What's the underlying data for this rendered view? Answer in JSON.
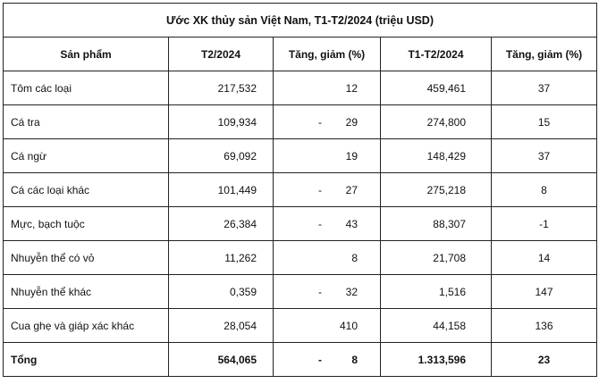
{
  "table": {
    "title": "Ước XK thủy sản Việt Nam, T1-T2/2024 (triệu USD)",
    "headers": [
      "Sản phẩm",
      "T2/2024",
      "Tăng, giảm (%)",
      "T1-T2/2024",
      "Tăng, giảm (%)"
    ],
    "rows": [
      {
        "product": "Tôm các loại",
        "feb": "217,532",
        "feb_sign": "",
        "feb_change": "12",
        "ytd": "459,461",
        "ytd_change": "37"
      },
      {
        "product": "Cá tra",
        "feb": "109,934",
        "feb_sign": "-",
        "feb_change": "29",
        "ytd": "274,800",
        "ytd_change": "15"
      },
      {
        "product": "Cá ngừ",
        "feb": "69,092",
        "feb_sign": "",
        "feb_change": "19",
        "ytd": "148,429",
        "ytd_change": "37"
      },
      {
        "product": "Cá các loại khác",
        "feb": "101,449",
        "feb_sign": "-",
        "feb_change": "27",
        "ytd": "275,218",
        "ytd_change": "8"
      },
      {
        "product": "Mực, bạch tuộc",
        "feb": "26,384",
        "feb_sign": "-",
        "feb_change": "43",
        "ytd": "88,307",
        "ytd_change": "-1"
      },
      {
        "product": "Nhuyễn thể có vỏ",
        "feb": "11,262",
        "feb_sign": "",
        "feb_change": "8",
        "ytd": "21,708",
        "ytd_change": "14"
      },
      {
        "product": "Nhuyễn thể khác",
        "feb": "0,359",
        "feb_sign": "-",
        "feb_change": "32",
        "ytd": "1,516",
        "ytd_change": "147"
      },
      {
        "product": "Cua ghẹ và giáp xác khác",
        "feb": "28,054",
        "feb_sign": "",
        "feb_change": "410",
        "ytd": "44,158",
        "ytd_change": "136"
      }
    ],
    "total": {
      "product": "Tổng",
      "feb": "564,065",
      "feb_sign": "-",
      "feb_change": "8",
      "ytd": "1.313,596",
      "ytd_change": "23"
    }
  }
}
